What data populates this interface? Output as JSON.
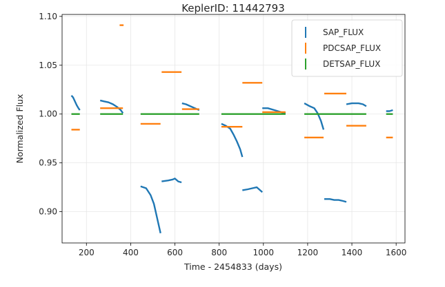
{
  "chart_data": {
    "type": "scatter",
    "title": "KeplerID: 11442793",
    "xlabel": "Time - 2454833 (days)",
    "ylabel": "Normalized Flux",
    "xlim": [
      90,
      1640
    ],
    "ylim": [
      0.868,
      1.102
    ],
    "xticks": [
      200,
      400,
      600,
      800,
      1000,
      1200,
      1400,
      1600
    ],
    "yticks": [
      0.9,
      0.95,
      1.0,
      1.05,
      1.1
    ],
    "grid": true,
    "legend_position": "top-right",
    "series": [
      {
        "name": "SAP_FLUX",
        "color": "#1f77b4",
        "segments": [
          {
            "x": [
              132,
              140,
              148,
              156,
              164,
              170
            ],
            "y": [
              1.019,
              1.017,
              1.013,
              1.009,
              1.006,
              1.004
            ]
          },
          {
            "x": [
              262,
              280,
              300,
              320,
              340,
              355,
              365
            ],
            "y": [
              1.014,
              1.013,
              1.012,
              1.01,
              1.007,
              1.004,
              1.001
            ]
          },
          {
            "x": [
              445,
              470,
              490,
              505,
              515,
              525,
              535
            ],
            "y": [
              0.926,
              0.924,
              0.917,
              0.908,
              0.898,
              0.888,
              0.878
            ]
          },
          {
            "x": [
              540,
              570,
              590,
              600,
              615,
              630
            ],
            "y": [
              0.931,
              0.932,
              0.933,
              0.934,
              0.931,
              0.93
            ]
          },
          {
            "x": [
              632,
              650,
              670,
              690,
              710
            ],
            "y": [
              1.011,
              1.01,
              1.008,
              1.006,
              1.004
            ]
          },
          {
            "x": [
              810,
              830,
              850,
              865,
              880,
              895,
              905
            ],
            "y": [
              0.99,
              0.988,
              0.985,
              0.979,
              0.972,
              0.964,
              0.956
            ]
          },
          {
            "x": [
              905,
              930,
              950,
              970,
              985,
              995
            ],
            "y": [
              0.922,
              0.923,
              0.924,
              0.925,
              0.922,
              0.92
            ]
          },
          {
            "x": [
              995,
              1020,
              1050,
              1080,
              1100
            ],
            "y": [
              1.006,
              1.006,
              1.004,
              1.002,
              1.001
            ]
          },
          {
            "x": [
              1185,
              1210,
              1230,
              1245,
              1260,
              1272
            ],
            "y": [
              1.011,
              1.008,
              1.006,
              1.001,
              0.993,
              0.984
            ]
          },
          {
            "x": [
              1275,
              1300,
              1320,
              1340,
              1360,
              1375
            ],
            "y": [
              0.913,
              0.913,
              0.912,
              0.912,
              0.911,
              0.91
            ]
          },
          {
            "x": [
              1375,
              1400,
              1430,
              1450,
              1465
            ],
            "y": [
              1.01,
              1.011,
              1.011,
              1.01,
              1.008
            ]
          },
          {
            "x": [
              1555,
              1570,
              1585
            ],
            "y": [
              1.003,
              1.003,
              1.004
            ]
          }
        ]
      },
      {
        "name": "PDCSAP_FLUX",
        "color": "#ff7f0e",
        "segments": [
          {
            "x": [
              132,
              170
            ],
            "y": [
              0.984,
              0.984
            ]
          },
          {
            "x": [
              262,
              365
            ],
            "y": [
              1.006,
              1.006
            ]
          },
          {
            "x": [
              350,
              368
            ],
            "y": [
              1.091,
              1.091
            ]
          },
          {
            "x": [
              445,
              535
            ],
            "y": [
              0.99,
              0.99
            ]
          },
          {
            "x": [
              540,
              630
            ],
            "y": [
              1.043,
              1.043
            ]
          },
          {
            "x": [
              632,
              710
            ],
            "y": [
              1.005,
              1.005
            ]
          },
          {
            "x": [
              810,
              905
            ],
            "y": [
              0.987,
              0.987
            ]
          },
          {
            "x": [
              905,
              995
            ],
            "y": [
              1.032,
              1.032
            ]
          },
          {
            "x": [
              995,
              1100
            ],
            "y": [
              1.002,
              1.002
            ]
          },
          {
            "x": [
              1185,
              1272
            ],
            "y": [
              0.976,
              0.976
            ]
          },
          {
            "x": [
              1275,
              1375
            ],
            "y": [
              1.021,
              1.021
            ]
          },
          {
            "x": [
              1375,
              1465
            ],
            "y": [
              0.988,
              0.988
            ]
          },
          {
            "x": [
              1555,
              1585
            ],
            "y": [
              0.976,
              0.976
            ]
          }
        ]
      },
      {
        "name": "DETSAP_FLUX",
        "color": "#2ca02c",
        "segments": [
          {
            "x": [
              132,
              170
            ],
            "y": [
              1.0,
              1.0
            ]
          },
          {
            "x": [
              262,
              365
            ],
            "y": [
              1.0,
              1.0
            ]
          },
          {
            "x": [
              445,
              710
            ],
            "y": [
              1.0,
              1.0
            ]
          },
          {
            "x": [
              810,
              1100
            ],
            "y": [
              1.0,
              1.0
            ]
          },
          {
            "x": [
              1185,
              1465
            ],
            "y": [
              1.0,
              1.0
            ]
          },
          {
            "x": [
              1555,
              1585
            ],
            "y": [
              1.0,
              1.0
            ]
          }
        ]
      }
    ]
  }
}
